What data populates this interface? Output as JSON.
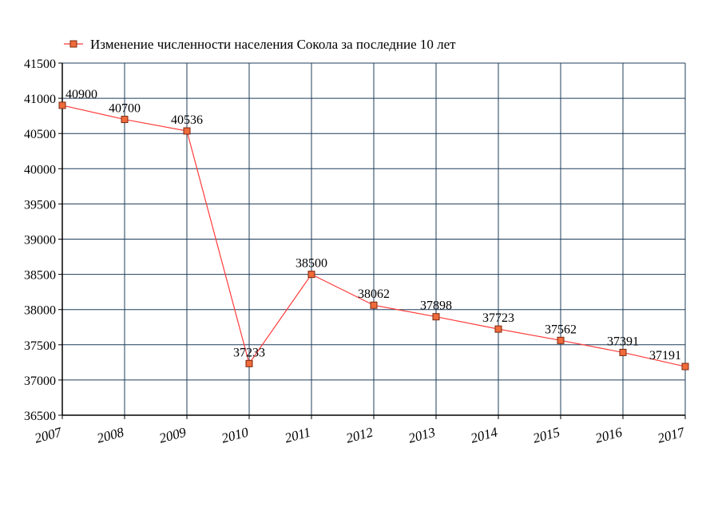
{
  "chart_data": {
    "type": "line",
    "title": "",
    "xlabel": "",
    "ylabel": "",
    "categories": [
      "2007",
      "2008",
      "2009",
      "2010",
      "2011",
      "2012",
      "2013",
      "2014",
      "2015",
      "2016",
      "2017"
    ],
    "series": [
      {
        "name": "Изменение численности населения Сокола за последние 10 лет",
        "values": [
          40900,
          40700,
          40536,
          37233,
          38500,
          38062,
          37898,
          37723,
          37562,
          37391,
          37191
        ],
        "labels": [
          "40900",
          "40700",
          "40536",
          "37233",
          "38500",
          "38062",
          "37898",
          "37723",
          "37562",
          "37391",
          "37191"
        ]
      }
    ],
    "ylim": [
      36500,
      41500
    ],
    "yticks": [
      "36500",
      "37000",
      "37500",
      "38000",
      "38500",
      "39000",
      "39500",
      "40000",
      "40500",
      "41000",
      "41500"
    ],
    "grid": true,
    "legend_position": "top-left",
    "colors": {
      "grid": "#1f3c5a",
      "line": "#ff3b3b",
      "marker_fill": "#f06a3a",
      "marker_stroke": "#7a2a10"
    }
  }
}
